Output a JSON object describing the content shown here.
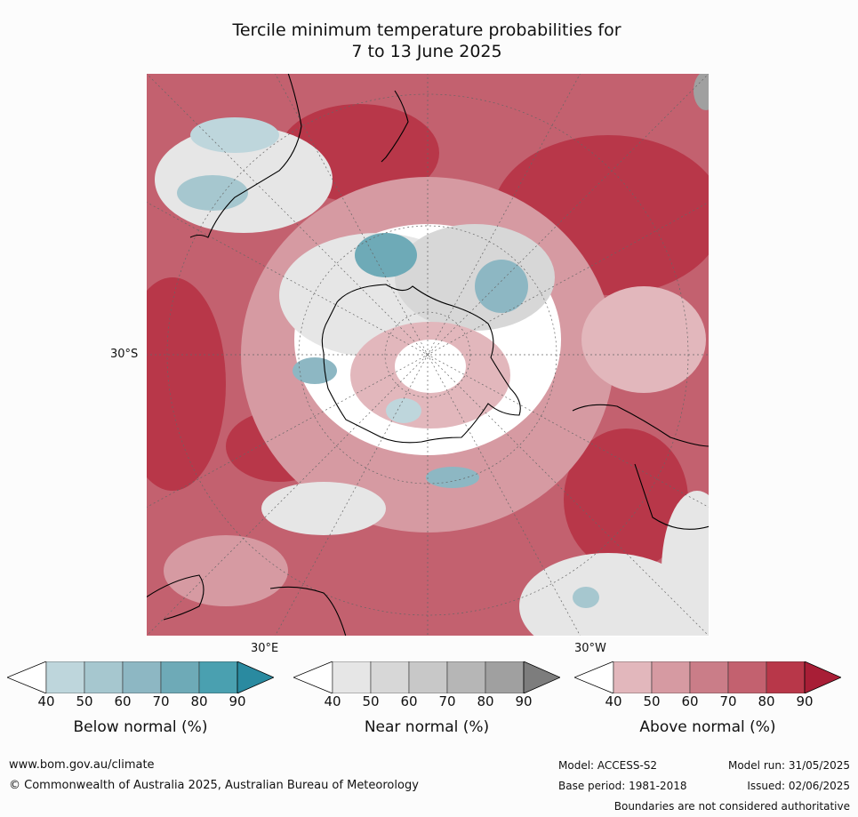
{
  "title": {
    "line1": "Tercile minimum temperature probabilities for",
    "line2": "7 to 13 June 2025"
  },
  "map": {
    "lat_label": "30°S",
    "lon_labels": {
      "east": "30°E",
      "west": "30°W"
    },
    "colors": {
      "above": [
        "#e2b7bc",
        "#d69aa2",
        "#ca7d88",
        "#c3616f",
        "#b83749",
        "#a81e36"
      ],
      "near": [
        "#e6e6e6",
        "#d7d7d7",
        "#c8c8c8",
        "#b6b6b6",
        "#a0a0a0",
        "#7d7d7d"
      ],
      "below": [
        "#bed6dc",
        "#a6c7cf",
        "#8db7c3",
        "#6eaab7",
        "#4aa0b0",
        "#2a8aa0"
      ]
    }
  },
  "colorbars": [
    {
      "title": "Below normal (%)",
      "ticks": [
        "40",
        "50",
        "60",
        "70",
        "80",
        "90"
      ]
    },
    {
      "title": "Near normal (%)",
      "ticks": [
        "40",
        "50",
        "60",
        "70",
        "80",
        "90"
      ]
    },
    {
      "title": "Above normal (%)",
      "ticks": [
        "40",
        "50",
        "60",
        "70",
        "80",
        "90"
      ]
    }
  ],
  "footer": {
    "url": "www.bom.gov.au/climate",
    "copyright": "© Commonwealth of Australia 2025, Australian Bureau of Meteorology",
    "model": "Model: ACCESS-S2",
    "base_period": "Base period: 1981-2018",
    "model_run": "Model run: 31/05/2025",
    "issued": "Issued: 02/06/2025",
    "disclaimer": "Boundaries are not considered authoritative"
  }
}
